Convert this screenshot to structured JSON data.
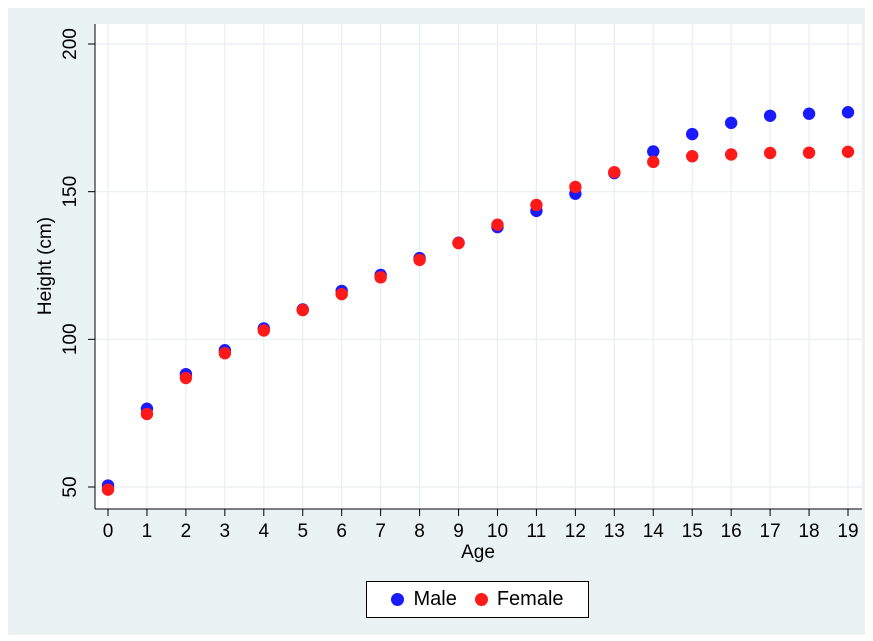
{
  "chart_data": {
    "type": "scatter",
    "xlabel": "Age",
    "ylabel": "Height (cm)",
    "xlim": [
      0,
      19
    ],
    "ylim": [
      50,
      200
    ],
    "x_ticks": [
      0,
      1,
      2,
      3,
      4,
      5,
      6,
      7,
      8,
      9,
      10,
      11,
      12,
      13,
      14,
      15,
      16,
      17,
      18,
      19
    ],
    "y_ticks": [
      50,
      100,
      150,
      200
    ],
    "grid": true,
    "legend_position": "bottom",
    "x": [
      0,
      1,
      2,
      3,
      4,
      5,
      6,
      7,
      8,
      9,
      10,
      11,
      12,
      13,
      14,
      15,
      16,
      17,
      18,
      19
    ],
    "series": [
      {
        "name": "Male",
        "color": "#1a1aff",
        "values": [
          50.5,
          76.5,
          88.2,
          96.3,
          103.7,
          110.1,
          116.4,
          121.8,
          127.5,
          132.7,
          138.0,
          143.5,
          149.3,
          156.3,
          163.6,
          169.5,
          173.3,
          175.7,
          176.4,
          176.9
        ]
      },
      {
        "name": "Female",
        "color": "#ff1a1a",
        "values": [
          49.1,
          74.7,
          86.9,
          95.3,
          103.0,
          109.9,
          115.3,
          121.0,
          126.9,
          132.6,
          138.8,
          145.5,
          151.6,
          156.6,
          160.1,
          162.0,
          162.6,
          163.1,
          163.2,
          163.5
        ]
      }
    ]
  }
}
